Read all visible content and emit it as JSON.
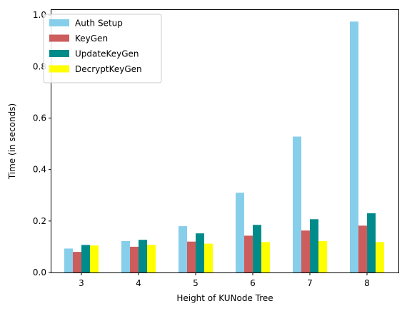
{
  "chart_data": {
    "type": "bar",
    "title": "",
    "xlabel": "Height of KUNode Tree",
    "ylabel": "Time (in seconds)",
    "categories": [
      "3",
      "4",
      "5",
      "6",
      "7",
      "8"
    ],
    "ylim": [
      0,
      1.02
    ],
    "yticks": [
      "0.0",
      "0.2",
      "0.4",
      "0.6",
      "0.8",
      "1.0"
    ],
    "grid": false,
    "legend_position": "top-left",
    "series": [
      {
        "name": "Auth Setup",
        "color": "#87CEEB",
        "values": [
          0.093,
          0.122,
          0.18,
          0.31,
          0.528,
          0.975
        ]
      },
      {
        "name": "KeyGen",
        "color": "#CD5C5C",
        "values": [
          0.08,
          0.1,
          0.12,
          0.143,
          0.163,
          0.182
        ]
      },
      {
        "name": "UpdateKeyGen",
        "color": "#008B8B",
        "values": [
          0.107,
          0.127,
          0.152,
          0.185,
          0.207,
          0.23
        ]
      },
      {
        "name": "DecryptKeyGen",
        "color": "#FFFF00",
        "values": [
          0.105,
          0.107,
          0.112,
          0.118,
          0.122,
          0.118
        ]
      }
    ]
  }
}
